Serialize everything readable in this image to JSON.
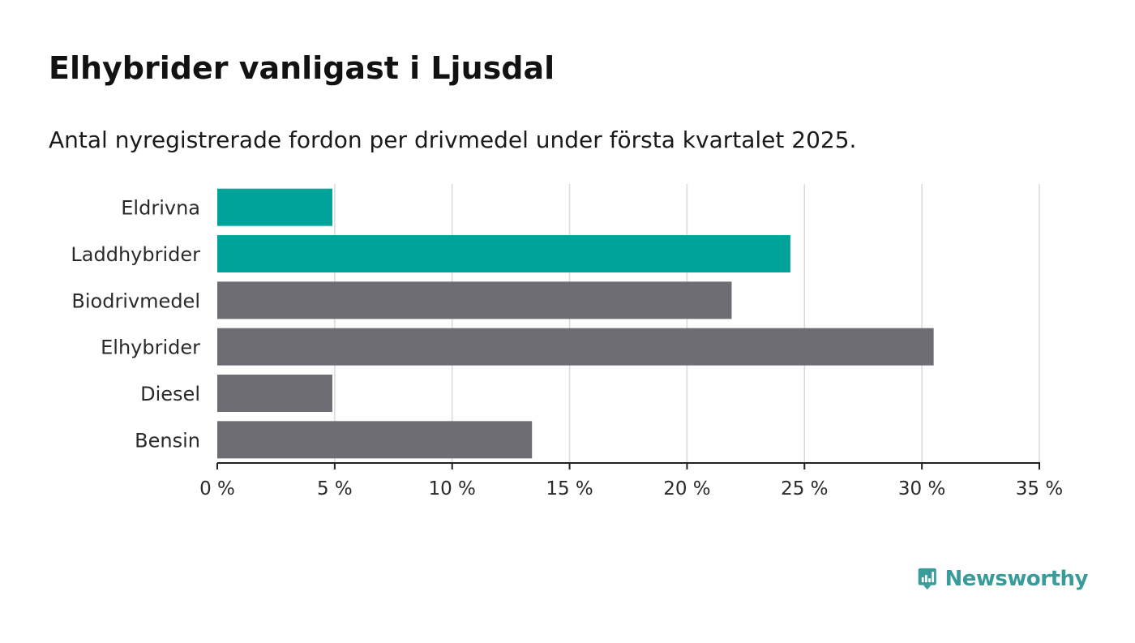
{
  "title": "Elhybrider vanligast i Ljusdal",
  "subtitle": "Antal nyregistrerade fordon per drivmedel under första kvartalet 2025.",
  "brand": {
    "name": "Newsworthy",
    "icon": "newsworthy-logo-icon",
    "color": "#3a9c9a"
  },
  "colors": {
    "highlight": "#00a39a",
    "default": "#6e6d73",
    "grid": "#d9d9d9",
    "axis": "#222222"
  },
  "chart_data": {
    "type": "bar",
    "orientation": "horizontal",
    "categories": [
      "Eldrivna",
      "Laddhybrider",
      "Biodrivmedel",
      "Elhybrider",
      "Diesel",
      "Bensin"
    ],
    "values": [
      4.9,
      24.4,
      21.9,
      30.5,
      4.9,
      13.4
    ],
    "highlighted": [
      true,
      true,
      false,
      false,
      false,
      false
    ],
    "unit": "%",
    "xlim": [
      0,
      35
    ],
    "xticks": [
      0,
      5,
      10,
      15,
      20,
      25,
      30,
      35
    ],
    "xtick_labels": [
      "0 %",
      "5 %",
      "10 %",
      "15 %",
      "20 %",
      "25 %",
      "30 %",
      "35 %"
    ],
    "grid": "vertical",
    "legend": "none"
  }
}
